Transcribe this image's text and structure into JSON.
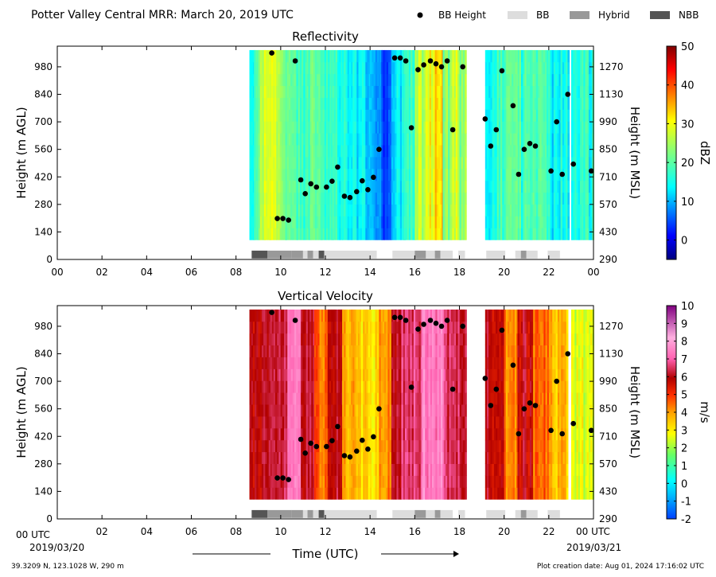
{
  "header": {
    "title": "Potter Valley Central MRR:  March 20, 2019 UTC",
    "legend": [
      {
        "label": "BB Height",
        "kind": "dot",
        "color": "#000000"
      },
      {
        "label": "BB",
        "kind": "box",
        "color": "#dddddd"
      },
      {
        "label": "Hybrid",
        "kind": "box",
        "color": "#999999"
      },
      {
        "label": "NBB",
        "kind": "box",
        "color": "#555555"
      }
    ]
  },
  "footer": {
    "location": "39.3209 N, 123.1028 W, 290 m",
    "created": "Plot creation date: Aug 01, 2024 17:16:02 UTC",
    "time_axis_label": "Time (UTC)",
    "start_date": "2019/03/20",
    "end_date": "2019/03/21"
  },
  "chart_data": [
    {
      "type": "heatmap",
      "title": "Reflectivity",
      "ylabel": "Height (m AGL)",
      "ylabel_right": "Height (m MSL)",
      "ylim": [
        0,
        1085
      ],
      "yticks": [
        0,
        140,
        280,
        420,
        560,
        700,
        840,
        980
      ],
      "yticks_right": [
        290,
        430,
        570,
        710,
        850,
        990,
        1130,
        1270
      ],
      "xlim": [
        0,
        24
      ],
      "xticks": [
        "00",
        "02",
        "04",
        "06",
        "08",
        "10",
        "12",
        "14",
        "16",
        "18",
        "20",
        "22",
        "00"
      ],
      "colorbar": {
        "label": "dBZ",
        "min": -5,
        "max": 50,
        "ticks": [
          0,
          10,
          20,
          30,
          40,
          50
        ],
        "colormap": "jet"
      }
    },
    {
      "type": "heatmap",
      "title": "Vertical Velocity",
      "ylabel": "Height (m AGL)",
      "ylabel_right": "Height (m MSL)",
      "ylim": [
        0,
        1085
      ],
      "yticks": [
        0,
        140,
        280,
        420,
        560,
        700,
        840,
        980
      ],
      "yticks_right": [
        290,
        430,
        570,
        710,
        850,
        990,
        1130,
        1270
      ],
      "xlim": [
        0,
        24
      ],
      "xticks": [
        "00 UTC",
        "02",
        "04",
        "06",
        "08",
        "10",
        "12",
        "14",
        "16",
        "18",
        "20",
        "22",
        "00 UTC"
      ],
      "colorbar": {
        "label": "m/s",
        "min": -2,
        "max": 10,
        "ticks": [
          -2,
          -1,
          0,
          1,
          2,
          3,
          4,
          5,
          6,
          7,
          8,
          9,
          10
        ],
        "colormap": "velocity"
      }
    }
  ],
  "bb_heights": [
    [
      9.6,
      1050
    ],
    [
      9.85,
      208
    ],
    [
      10.1,
      208
    ],
    [
      10.35,
      200
    ],
    [
      10.65,
      1010
    ],
    [
      10.9,
      405
    ],
    [
      11.1,
      335
    ],
    [
      11.35,
      385
    ],
    [
      11.6,
      368
    ],
    [
      12.05,
      368
    ],
    [
      12.3,
      398
    ],
    [
      12.55,
      470
    ],
    [
      12.85,
      322
    ],
    [
      13.1,
      315
    ],
    [
      13.4,
      345
    ],
    [
      13.65,
      400
    ],
    [
      13.9,
      355
    ],
    [
      14.15,
      418
    ],
    [
      14.4,
      560
    ],
    [
      15.1,
      1025
    ],
    [
      15.35,
      1025
    ],
    [
      15.6,
      1010
    ],
    [
      15.85,
      670
    ],
    [
      16.15,
      965
    ],
    [
      16.4,
      990
    ],
    [
      16.7,
      1010
    ],
    [
      16.95,
      995
    ],
    [
      17.2,
      980
    ],
    [
      17.45,
      1010
    ],
    [
      17.7,
      660
    ],
    [
      18.15,
      980
    ],
    [
      19.15,
      715
    ],
    [
      19.4,
      577
    ],
    [
      19.65,
      660
    ],
    [
      19.9,
      960
    ],
    [
      20.4,
      782
    ],
    [
      20.65,
      433
    ],
    [
      20.9,
      560
    ],
    [
      21.15,
      590
    ],
    [
      21.4,
      577
    ],
    [
      22.1,
      450
    ],
    [
      22.35,
      700
    ],
    [
      22.6,
      433
    ],
    [
      22.85,
      840
    ],
    [
      23.1,
      485
    ],
    [
      23.9,
      450
    ]
  ],
  "bb_types": [
    [
      "NBB",
      8.7,
      9.4
    ],
    [
      "Hybrid",
      9.4,
      10.5
    ],
    [
      "Hybrid",
      10.5,
      11.0
    ],
    [
      "BB",
      11.0,
      11.2
    ],
    [
      "Hybrid",
      11.2,
      11.45
    ],
    [
      "BB",
      11.45,
      11.7
    ],
    [
      "NBB",
      11.7,
      11.95
    ],
    [
      "BB",
      11.95,
      14.3
    ],
    [
      "BB",
      15.0,
      16.0
    ],
    [
      "Hybrid",
      16.0,
      16.5
    ],
    [
      "BB",
      16.5,
      16.9
    ],
    [
      "Hybrid",
      16.9,
      17.15
    ],
    [
      "BB",
      17.15,
      17.7
    ],
    [
      "BB",
      17.95,
      18.25
    ],
    [
      "BB",
      19.2,
      20.05
    ],
    [
      "BB",
      20.5,
      20.75
    ],
    [
      "Hybrid",
      20.75,
      21.0
    ],
    [
      "BB",
      21.0,
      21.5
    ],
    [
      "BB",
      21.95,
      22.5
    ]
  ],
  "data_segments": [
    [
      8.6,
      12.75
    ],
    [
      12.75,
      14.9
    ],
    [
      14.95,
      18.3
    ],
    [
      19.15,
      22.85
    ],
    [
      23.0,
      24.0
    ]
  ],
  "refl_segments": [
    {
      "x0": 8.6,
      "x1": 8.8,
      "dbz": [
        13,
        15
      ]
    },
    {
      "x0": 8.8,
      "x1": 9.0,
      "dbz": [
        17,
        20
      ]
    },
    {
      "x0": 9.0,
      "x1": 9.25,
      "dbz": [
        22,
        27
      ]
    },
    {
      "x0": 9.25,
      "x1": 9.5,
      "dbz": [
        26,
        30
      ]
    },
    {
      "x0": 9.5,
      "x1": 9.8,
      "dbz": [
        28,
        31
      ]
    },
    {
      "x0": 9.8,
      "x1": 10.2,
      "dbz": [
        22,
        27
      ]
    },
    {
      "x0": 10.2,
      "x1": 10.7,
      "dbz": [
        18,
        24
      ]
    },
    {
      "x0": 10.7,
      "x1": 11.3,
      "dbz": [
        15,
        21
      ]
    },
    {
      "x0": 11.3,
      "x1": 11.8,
      "dbz": [
        17,
        23
      ]
    },
    {
      "x0": 11.8,
      "x1": 12.3,
      "dbz": [
        15,
        20
      ]
    },
    {
      "x0": 12.3,
      "x1": 12.75,
      "dbz": [
        13,
        19
      ]
    },
    {
      "x0": 12.75,
      "x1": 13.4,
      "dbz": [
        12,
        18
      ]
    },
    {
      "x0": 13.4,
      "x1": 14.0,
      "dbz": [
        10,
        16
      ]
    },
    {
      "x0": 14.0,
      "x1": 14.5,
      "dbz": [
        6,
        12
      ]
    },
    {
      "x0": 14.5,
      "x1": 14.9,
      "dbz": [
        2,
        8
      ]
    },
    {
      "x0": 14.95,
      "x1": 15.5,
      "dbz": [
        10,
        16
      ]
    },
    {
      "x0": 15.5,
      "x1": 16.0,
      "dbz": [
        14,
        21
      ]
    },
    {
      "x0": 16.0,
      "x1": 16.5,
      "dbz": [
        22,
        30
      ]
    },
    {
      "x0": 16.5,
      "x1": 16.9,
      "dbz": [
        27,
        33
      ]
    },
    {
      "x0": 16.9,
      "x1": 17.25,
      "dbz": [
        31,
        38
      ]
    },
    {
      "x0": 17.25,
      "x1": 17.6,
      "dbz": [
        20,
        28
      ]
    },
    {
      "x0": 17.6,
      "x1": 18.0,
      "dbz": [
        24,
        31
      ]
    },
    {
      "x0": 18.0,
      "x1": 18.3,
      "dbz": [
        20,
        27
      ]
    },
    {
      "x0": 19.15,
      "x1": 19.6,
      "dbz": [
        12,
        18
      ]
    },
    {
      "x0": 19.6,
      "x1": 20.1,
      "dbz": [
        14,
        21
      ]
    },
    {
      "x0": 20.1,
      "x1": 20.6,
      "dbz": [
        18,
        25
      ]
    },
    {
      "x0": 20.6,
      "x1": 21.2,
      "dbz": [
        14,
        22
      ]
    },
    {
      "x0": 21.2,
      "x1": 21.9,
      "dbz": [
        16,
        24
      ]
    },
    {
      "x0": 21.9,
      "x1": 22.85,
      "dbz": [
        10,
        18
      ]
    },
    {
      "x0": 23.0,
      "x1": 24.0,
      "dbz": [
        12,
        20
      ]
    }
  ],
  "vel_segments": [
    {
      "x0": 8.6,
      "x1": 9.6,
      "ms": [
        5.5,
        6.4
      ]
    },
    {
      "x0": 9.6,
      "x1": 10.3,
      "ms": [
        5.8,
        6.6
      ]
    },
    {
      "x0": 10.3,
      "x1": 10.9,
      "ms": [
        7.2,
        7.9
      ]
    },
    {
      "x0": 10.9,
      "x1": 11.5,
      "ms": [
        5.8,
        6.6
      ]
    },
    {
      "x0": 11.5,
      "x1": 12.1,
      "ms": [
        4.0,
        5.0
      ]
    },
    {
      "x0": 12.1,
      "x1": 12.75,
      "ms": [
        5.6,
        6.5
      ]
    },
    {
      "x0": 12.75,
      "x1": 13.6,
      "ms": [
        3.2,
        4.2
      ]
    },
    {
      "x0": 13.6,
      "x1": 14.4,
      "ms": [
        2.8,
        3.8
      ]
    },
    {
      "x0": 14.4,
      "x1": 14.9,
      "ms": [
        3.6,
        4.6
      ]
    },
    {
      "x0": 14.95,
      "x1": 15.4,
      "ms": [
        5.8,
        6.5
      ]
    },
    {
      "x0": 15.4,
      "x1": 16.3,
      "ms": [
        6.2,
        7.2
      ]
    },
    {
      "x0": 16.3,
      "x1": 17.3,
      "ms": [
        7.0,
        8.0
      ]
    },
    {
      "x0": 17.3,
      "x1": 18.3,
      "ms": [
        5.8,
        6.8
      ]
    },
    {
      "x0": 19.15,
      "x1": 20.0,
      "ms": [
        5.4,
        6.4
      ]
    },
    {
      "x0": 20.0,
      "x1": 20.6,
      "ms": [
        3.6,
        4.6
      ]
    },
    {
      "x0": 20.6,
      "x1": 21.3,
      "ms": [
        5.4,
        6.4
      ]
    },
    {
      "x0": 21.3,
      "x1": 22.0,
      "ms": [
        4.0,
        5.0
      ]
    },
    {
      "x0": 22.0,
      "x1": 22.85,
      "ms": [
        3.0,
        4.2
      ]
    },
    {
      "x0": 23.0,
      "x1": 24.0,
      "ms": [
        2.0,
        3.4
      ]
    }
  ]
}
